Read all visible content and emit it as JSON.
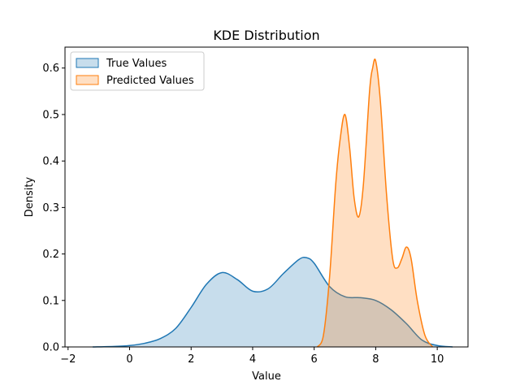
{
  "chart_data": {
    "type": "area",
    "title": "KDE Distribution",
    "xlabel": "Value",
    "ylabel": "Density",
    "xlim": [
      -2.1,
      11.0
    ],
    "ylim": [
      0,
      0.645
    ],
    "xticks": [
      -2,
      0,
      2,
      4,
      6,
      8,
      10
    ],
    "yticks": [
      0.0,
      0.1,
      0.2,
      0.3,
      0.4,
      0.5,
      0.6
    ],
    "xtick_labels": [
      "−2",
      "0",
      "2",
      "4",
      "6",
      "8",
      "10"
    ],
    "ytick_labels": [
      "0.0",
      "0.1",
      "0.2",
      "0.3",
      "0.4",
      "0.5",
      "0.6"
    ],
    "grid": false,
    "legend_position": "upper-left",
    "series": [
      {
        "name": "True Values",
        "line_color": "#1f77b4",
        "fill_color": "#1f77b4",
        "fill_opacity": 0.25,
        "x": [
          -1.2,
          -0.5,
          0,
          0.5,
          1,
          1.5,
          2,
          2.5,
          3,
          3.5,
          4,
          4.5,
          5,
          5.5,
          5.75,
          6,
          6.5,
          7,
          7.5,
          8,
          8.5,
          9,
          9.5,
          10,
          10.5
        ],
        "y": [
          0.0,
          0.001,
          0.003,
          0.008,
          0.018,
          0.04,
          0.085,
          0.135,
          0.16,
          0.145,
          0.12,
          0.125,
          0.158,
          0.188,
          0.192,
          0.18,
          0.13,
          0.108,
          0.106,
          0.1,
          0.08,
          0.05,
          0.015,
          0.003,
          0.0
        ]
      },
      {
        "name": "Predicted Values",
        "line_color": "#ff7f0e",
        "fill_color": "#ff7f0e",
        "fill_opacity": 0.25,
        "x": [
          6.1,
          6.3,
          6.5,
          6.7,
          6.85,
          7.0,
          7.15,
          7.3,
          7.45,
          7.6,
          7.8,
          7.9,
          8.0,
          8.15,
          8.35,
          8.55,
          8.7,
          8.85,
          9.0,
          9.15,
          9.35,
          9.6,
          9.85
        ],
        "y": [
          0.0,
          0.025,
          0.15,
          0.35,
          0.45,
          0.5,
          0.43,
          0.32,
          0.28,
          0.35,
          0.55,
          0.6,
          0.615,
          0.53,
          0.33,
          0.19,
          0.17,
          0.19,
          0.215,
          0.19,
          0.1,
          0.025,
          0.0
        ]
      }
    ]
  }
}
